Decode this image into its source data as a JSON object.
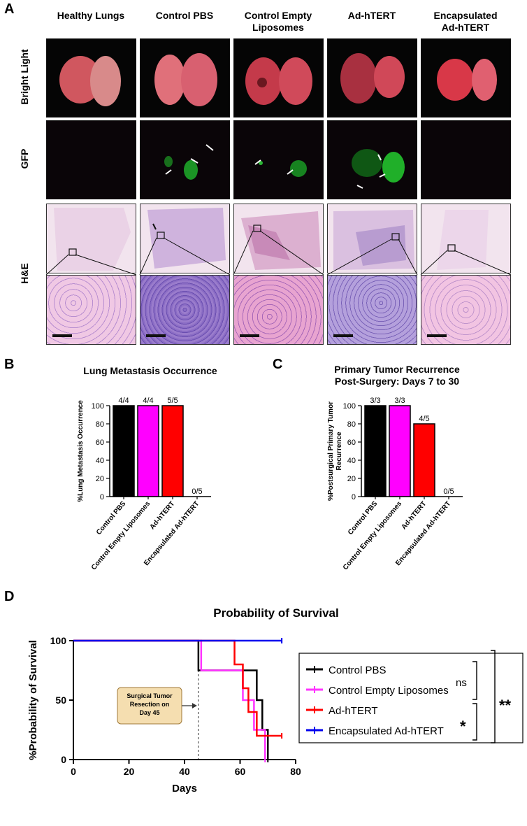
{
  "panel_a": {
    "letter": "A",
    "columns": [
      "Healthy Lungs",
      "Control PBS",
      "Control Empty\nLiposomes",
      "Ad-hTERT",
      "Encapsulated\nAd-hTERT"
    ],
    "rows": [
      "Bright Light",
      "GFP",
      "H&E"
    ]
  },
  "panel_b": {
    "letter": "B",
    "chart_data": {
      "type": "bar",
      "title": "Lung Metastasis Occurrence",
      "ylabel": "%Lung Metastasis Occurrence",
      "categories": [
        "Control PBS",
        "Control Empty Liposomes",
        "Ad-hTERT",
        "Encapsulated Ad-hTERT"
      ],
      "values": [
        100,
        100,
        100,
        0
      ],
      "bar_labels": [
        "4/4",
        "4/4",
        "5/5",
        "0/5"
      ],
      "colors": [
        "#000000",
        "#ff00ff",
        "#ff0000",
        "#ffffff"
      ],
      "ylim": [
        0,
        100
      ],
      "yticks": [
        0,
        20,
        40,
        60,
        80,
        100
      ]
    }
  },
  "panel_c": {
    "letter": "C",
    "chart_data": {
      "type": "bar",
      "title": "Primary Tumor Recurrence\nPost-Surgery: Days 7 to 30",
      "ylabel": "%Postsurgical Primary Tumor\nRecurrence",
      "categories": [
        "Control PBS",
        "Control Empty Liposomes",
        "Ad-hTERT",
        "Encapsulated Ad-hTERT"
      ],
      "values": [
        100,
        100,
        80,
        0
      ],
      "bar_labels": [
        "3/3",
        "3/3",
        "4/5",
        "0/5"
      ],
      "colors": [
        "#000000",
        "#ff00ff",
        "#ff0000",
        "#ffffff"
      ],
      "ylim": [
        0,
        100
      ],
      "yticks": [
        0,
        20,
        40,
        60,
        80,
        100
      ]
    }
  },
  "panel_d": {
    "letter": "D",
    "chart_data": {
      "type": "line",
      "title": "Probability of Survival",
      "xlabel": "Days",
      "ylabel": "%Probability of Survival",
      "xlim": [
        0,
        80
      ],
      "ylim": [
        0,
        100
      ],
      "xticks": [
        0,
        20,
        40,
        60,
        80
      ],
      "yticks": [
        0,
        50,
        100
      ],
      "series": [
        {
          "name": "Control PBS",
          "color": "#000000",
          "x": [
            0,
            45,
            45,
            66,
            66,
            68,
            68,
            70,
            70
          ],
          "y": [
            100,
            100,
            75,
            75,
            50,
            50,
            25,
            25,
            0
          ]
        },
        {
          "name": "Control Empty Liposomes",
          "color": "#ff33ff",
          "x": [
            0,
            46,
            46,
            61,
            61,
            65,
            65,
            68,
            68,
            69,
            69
          ],
          "y": [
            100,
            100,
            75,
            75,
            50,
            50,
            25,
            25,
            25,
            25,
            0
          ]
        },
        {
          "name": "Ad-hTERT",
          "color": "#ff0000",
          "x": [
            0,
            58,
            58,
            61,
            61,
            63,
            63,
            66,
            66,
            75
          ],
          "y": [
            100,
            100,
            80,
            80,
            60,
            60,
            40,
            40,
            20,
            20
          ]
        },
        {
          "name": "Encapsulated Ad-hTERT",
          "color": "#0000ee",
          "x": [
            0,
            75
          ],
          "y": [
            100,
            100
          ]
        }
      ],
      "annotation": "Surgical Tumor\nResection on\nDay 45",
      "annotation_x": 45,
      "significance": [
        "ns",
        "*",
        "**"
      ]
    }
  }
}
